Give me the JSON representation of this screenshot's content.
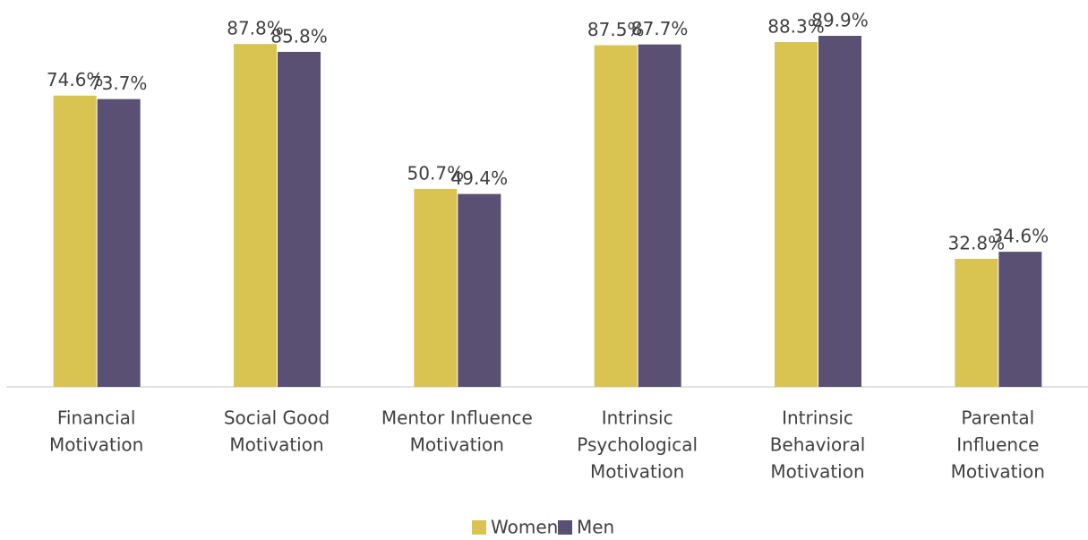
{
  "chart_data": {
    "type": "bar",
    "categories": [
      [
        "Financial",
        "Motivation"
      ],
      [
        "Social Good",
        "Motivation"
      ],
      [
        "Mentor Influence",
        "Motivation"
      ],
      [
        "Intrinsic",
        "Psychological",
        "Motivation"
      ],
      [
        "Intrinsic",
        "Behavioral",
        "Motivation"
      ],
      [
        "Parental",
        "Influence",
        "Motivation"
      ]
    ],
    "series": [
      {
        "name": "Women",
        "color": "#d9c452",
        "values": [
          74.6,
          87.8,
          50.7,
          87.5,
          88.3,
          32.8
        ],
        "value_labels": [
          "74.6%",
          "87.8%",
          "50.7%",
          "87.5%",
          "88.3%",
          "32.8%"
        ]
      },
      {
        "name": "Men",
        "color": "#5a5073",
        "values": [
          73.7,
          85.8,
          49.4,
          87.7,
          89.9,
          34.6
        ],
        "value_labels": [
          "73.7%",
          "85.8%",
          "49.4%",
          "87.7%",
          "89.9%",
          "34.6%"
        ]
      }
    ],
    "legend": "bottom"
  }
}
